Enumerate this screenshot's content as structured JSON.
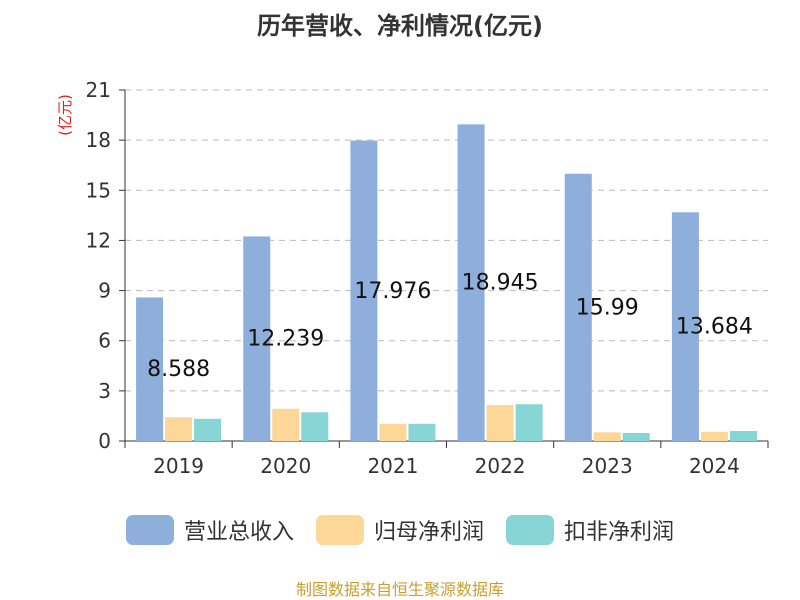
{
  "chart_data": {
    "type": "bar",
    "title": "历年营收、净利情况(亿元)",
    "ylabel": "(亿元)",
    "xlabel": "",
    "ylim": [
      0,
      21
    ],
    "yticks": [
      0,
      3,
      6,
      9,
      12,
      15,
      18,
      21
    ],
    "grid": true,
    "legend_position": "bottom",
    "categories": [
      "2019",
      "2020",
      "2021",
      "2022",
      "2023",
      "2024"
    ],
    "series": [
      {
        "name": "营业总收入",
        "color": "#8eaedb",
        "values": [
          8.588,
          12.239,
          17.976,
          18.945,
          15.99,
          13.684
        ],
        "labels": [
          "8.588",
          "12.239",
          "17.976",
          "18.945",
          "15.99",
          "13.684"
        ]
      },
      {
        "name": "归母净利润",
        "color": "#fdd798",
        "values": [
          1.42,
          1.93,
          1.03,
          2.15,
          0.52,
          0.55
        ]
      },
      {
        "name": "扣非净利润",
        "color": "#88d5d6",
        "values": [
          1.33,
          1.72,
          1.03,
          2.2,
          0.48,
          0.6
        ]
      }
    ]
  },
  "source_text": "制图数据来自恒生聚源数据库",
  "colors": {
    "axis": "#333333",
    "grid": "#bbbbbb",
    "ylabel": "#e02020",
    "source": "#c8a030"
  }
}
